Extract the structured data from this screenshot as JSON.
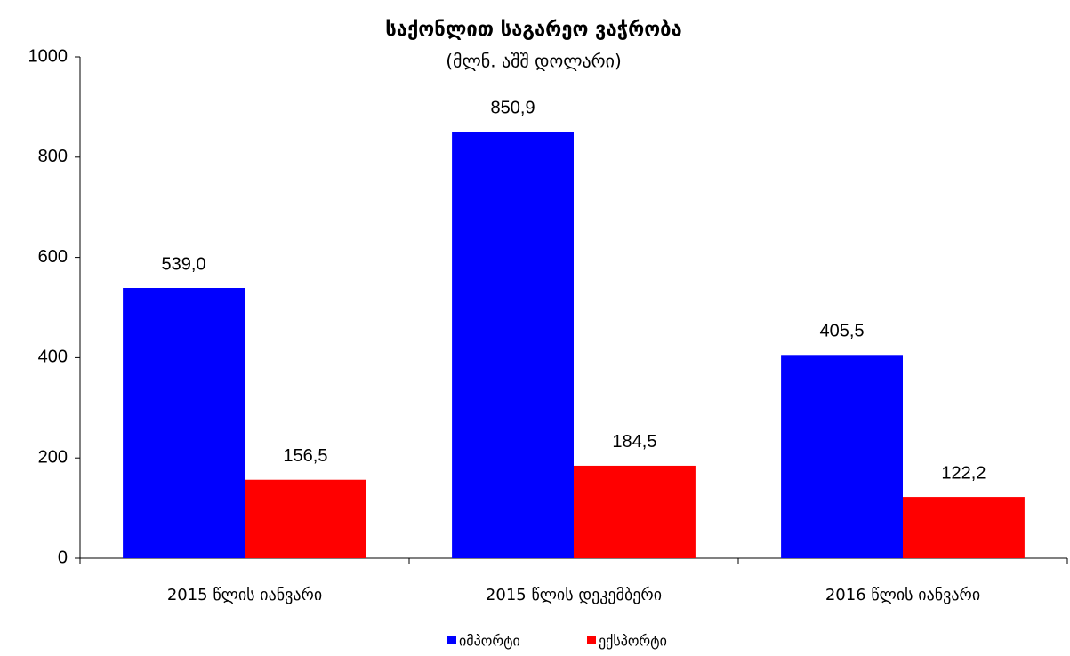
{
  "chart_data": {
    "type": "bar",
    "title": "საქონლით საგარეო ვაჭრობა",
    "subtitle": "(მლნ. აშშ დოლარი)",
    "categories": [
      "2015 წლის იანვარი",
      "2015 წლის დეკემბერი",
      "2016 წლის იანვარი"
    ],
    "series": [
      {
        "name": "იმპორტი",
        "color": "#0000ff",
        "values": [
          539.0,
          850.9,
          405.5
        ],
        "value_labels": [
          "539,0",
          "850,9",
          "405,5"
        ]
      },
      {
        "name": "ექსპორტი",
        "color": "#ff0000",
        "values": [
          156.5,
          184.5,
          122.2
        ],
        "value_labels": [
          "156,5",
          "184,5",
          "122,2"
        ]
      }
    ],
    "ylim": [
      0,
      1000
    ],
    "yticks": [
      0,
      200,
      400,
      600,
      800,
      1000
    ],
    "grid": false,
    "legend": "bottom"
  }
}
